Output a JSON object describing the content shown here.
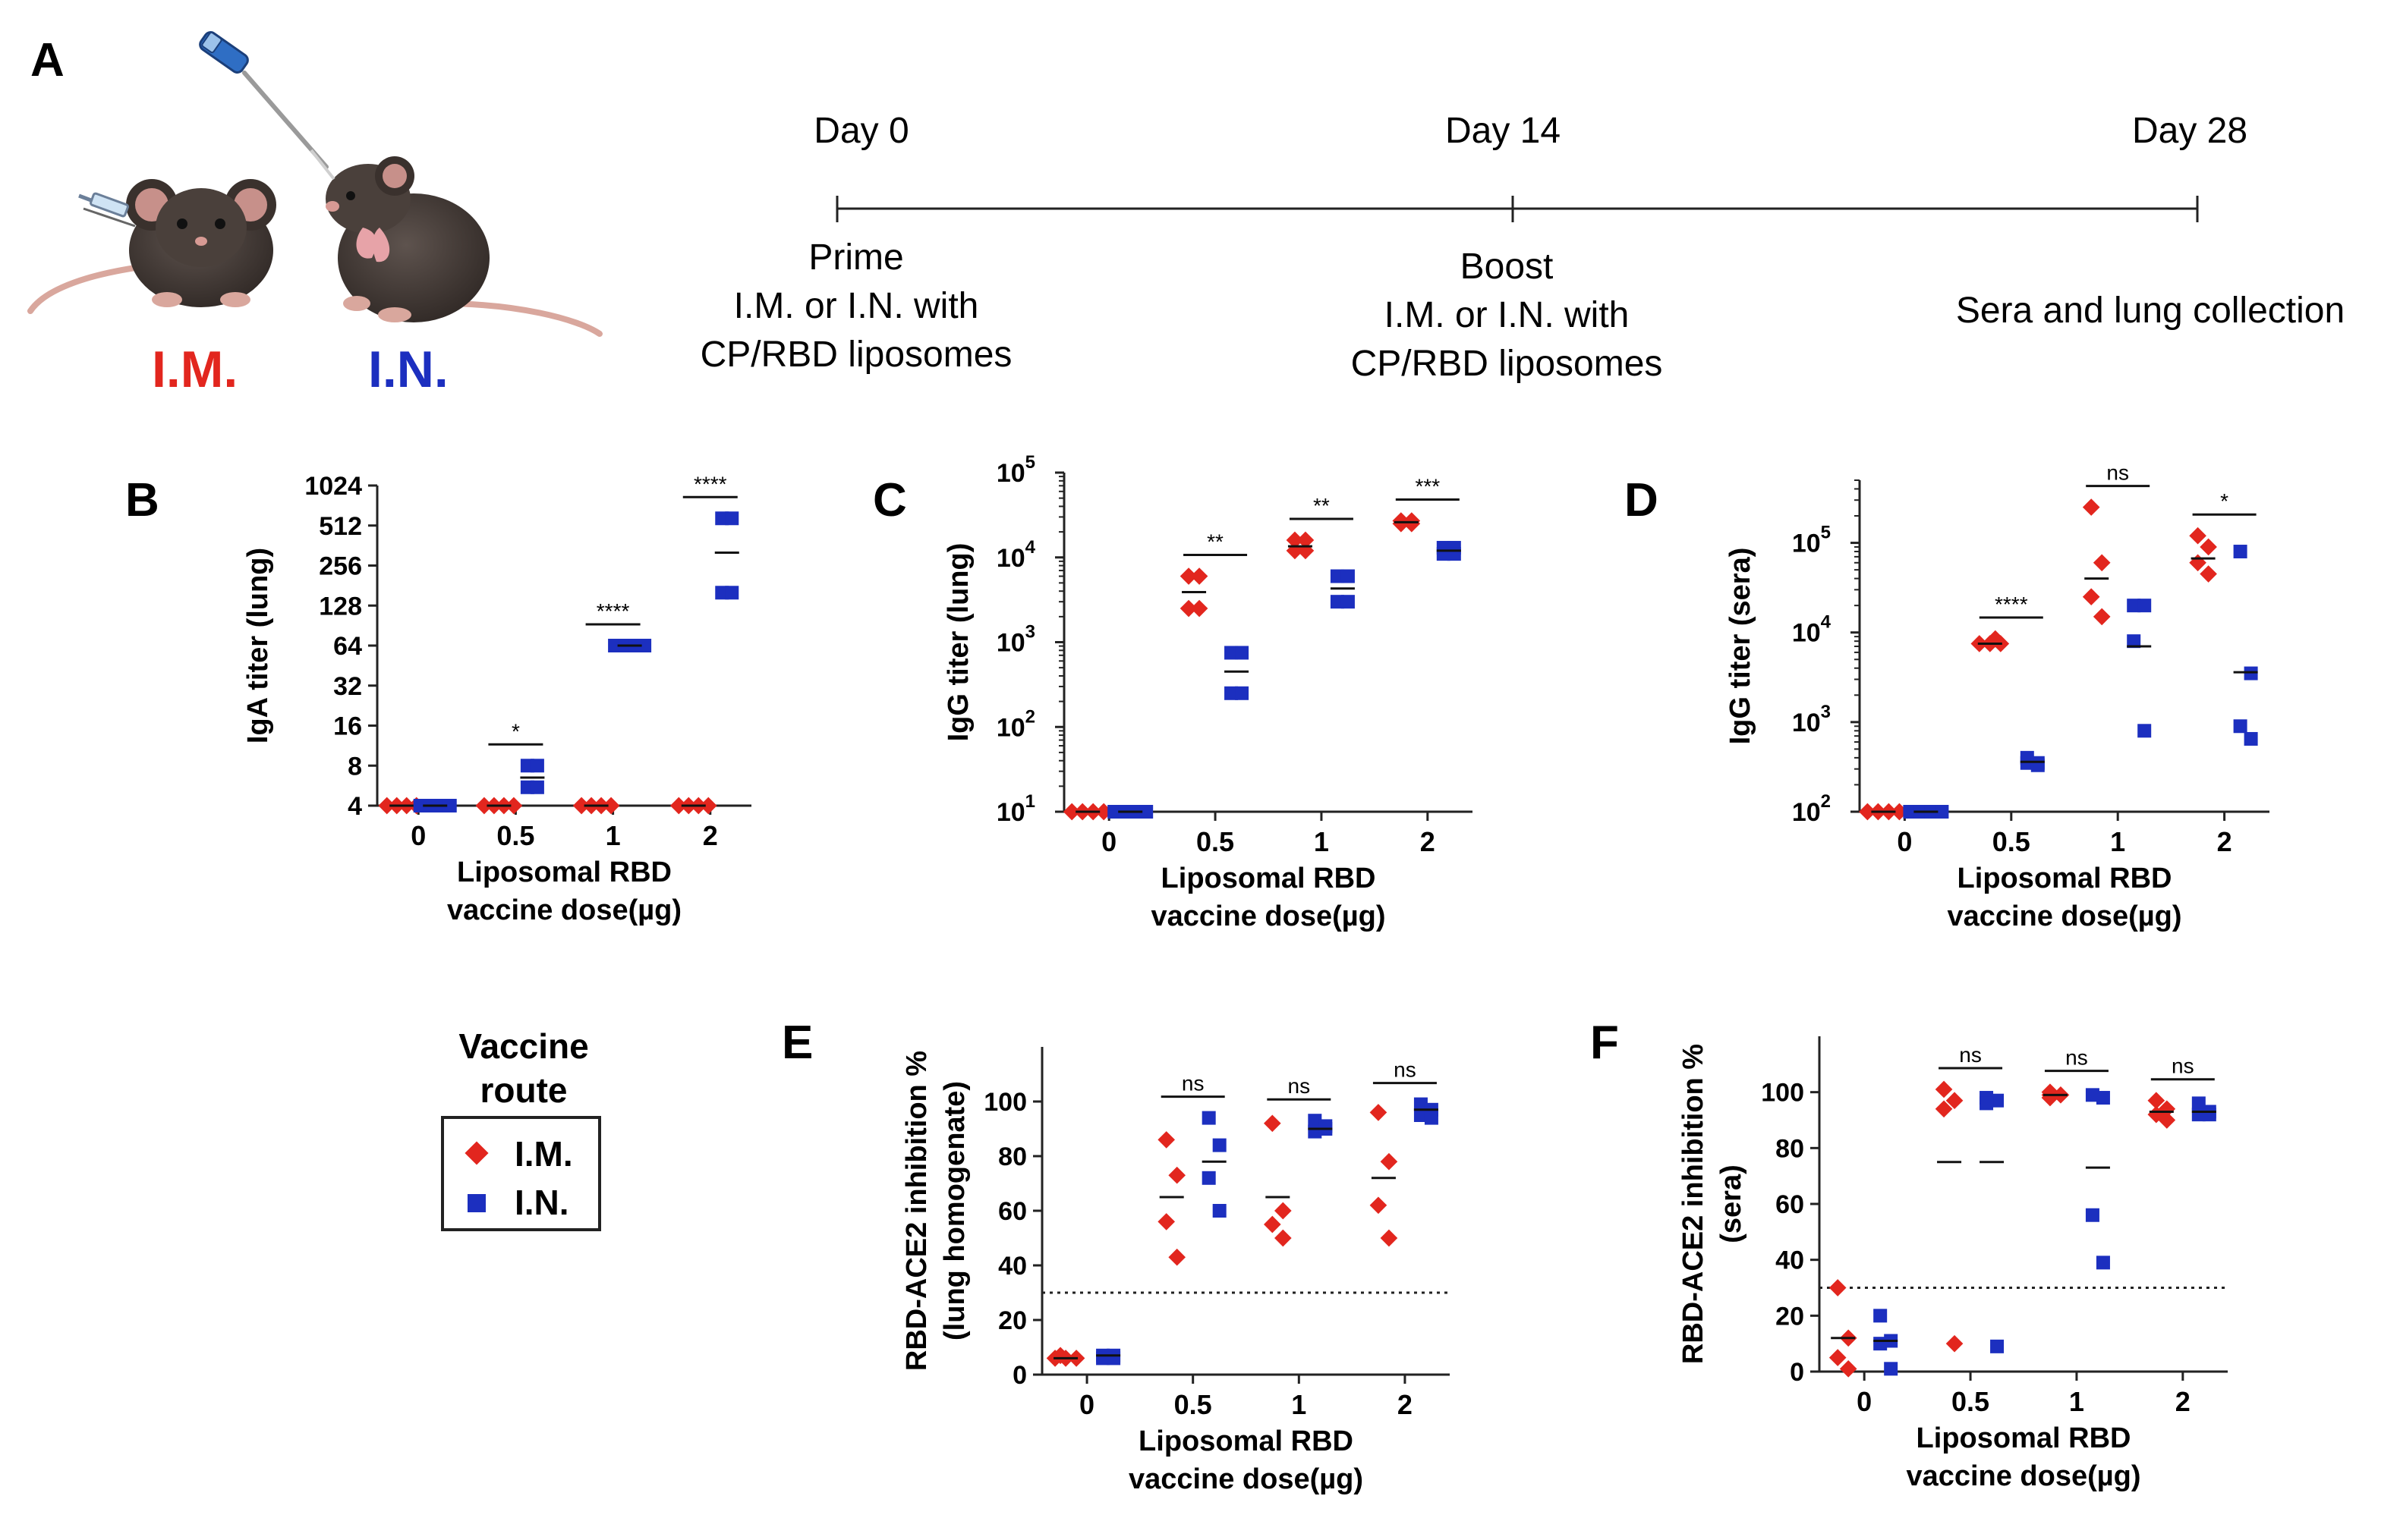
{
  "colors": {
    "im": "#e2261e",
    "in": "#1c2fbf",
    "axis": "#222222"
  },
  "panelA": {
    "letter": "A",
    "route_im": "I.M.",
    "route_in": "I.N.",
    "icons": [
      "mouse-icon",
      "syringe-icon",
      "pipette-icon"
    ],
    "timeline": [
      {
        "day": "Day 0",
        "lines": [
          "Prime",
          "I.M. or I.N. with",
          "CP/RBD liposomes"
        ]
      },
      {
        "day": "Day 14",
        "lines": [
          "Boost",
          "I.M. or I.N. with",
          "CP/RBD liposomes"
        ]
      },
      {
        "day": "Day 28",
        "lines": [
          "Sera and lung collection"
        ]
      }
    ]
  },
  "legend": {
    "title_lines": [
      "Vaccine",
      "route"
    ],
    "items": [
      "I.M.",
      "I.N."
    ]
  },
  "chart_data": [
    {
      "panel": "B",
      "type": "scatter",
      "scale": "log2",
      "ylabel": "IgA titer (lung)",
      "xlabel_lines": [
        "Liposomal RBD",
        "vaccine dose(µg)"
      ],
      "categories": [
        "0",
        "0.5",
        "1",
        "2"
      ],
      "ylim": [
        4,
        1024
      ],
      "yticks": [
        4,
        8,
        16,
        32,
        64,
        128,
        256,
        512,
        1024
      ],
      "ytick_labels": [
        "4",
        "8",
        "16",
        "32",
        "64",
        "128",
        "256",
        "512",
        "1024"
      ],
      "series": [
        {
          "name": "I.M.",
          "marker": "diamond",
          "points": [
            [
              4,
              4,
              4,
              4
            ],
            [
              4,
              4,
              4,
              4
            ],
            [
              4,
              4,
              4,
              4
            ],
            [
              4,
              4,
              4,
              4
            ]
          ],
          "means": [
            4,
            4,
            4,
            4
          ]
        },
        {
          "name": "I.N.",
          "marker": "square",
          "points": [
            [
              4,
              4,
              4,
              4
            ],
            [
              8,
              8,
              5.5,
              5.5
            ],
            [
              64,
              64,
              64,
              64
            ],
            [
              580,
              580,
              160,
              160
            ]
          ],
          "means": [
            4,
            6.5,
            64,
            320
          ]
        }
      ],
      "significance": [
        {
          "category": "0.5",
          "label": "*"
        },
        {
          "category": "1",
          "label": "****"
        },
        {
          "category": "2",
          "label": "****"
        }
      ]
    },
    {
      "panel": "C",
      "type": "scatter",
      "scale": "log10",
      "ylabel": "IgG titer (lung)",
      "xlabel_lines": [
        "Liposomal RBD",
        "vaccine dose(µg)"
      ],
      "categories": [
        "0",
        "0.5",
        "1",
        "2"
      ],
      "ylim": [
        10,
        100000
      ],
      "yticks": [
        10,
        100,
        1000,
        10000,
        100000
      ],
      "ytick_exps": [
        "1",
        "2",
        "3",
        "4",
        "5"
      ],
      "series": [
        {
          "name": "I.M.",
          "marker": "diamond",
          "points": [
            [
              10,
              10,
              10,
              10
            ],
            [
              6000,
              6000,
              2500,
              2500
            ],
            [
              16000,
              16000,
              12000,
              12000
            ],
            [
              27000,
              27000,
              25000,
              25000
            ]
          ],
          "means": [
            10,
            3900,
            13500,
            26000
          ]
        },
        {
          "name": "I.N.",
          "marker": "square",
          "points": [
            [
              10,
              10,
              10,
              10
            ],
            [
              750,
              750,
              250,
              250
            ],
            [
              6000,
              6000,
              3000,
              3000
            ],
            [
              13000,
              13000,
              11000,
              11000
            ]
          ],
          "means": [
            10,
            450,
            4300,
            12000
          ]
        }
      ],
      "significance": [
        {
          "category": "0.5",
          "label": "**"
        },
        {
          "category": "1",
          "label": "**"
        },
        {
          "category": "2",
          "label": "***"
        }
      ]
    },
    {
      "panel": "D",
      "type": "scatter",
      "scale": "log10",
      "ylabel": "IgG titer (sera)",
      "xlabel_lines": [
        "Liposomal RBD",
        "vaccine dose(µg)"
      ],
      "categories": [
        "0",
        "0.5",
        "1",
        "2"
      ],
      "ylim": [
        100,
        500000
      ],
      "yticks": [
        100,
        1000,
        10000,
        100000
      ],
      "ytick_exps": [
        "2",
        "3",
        "4",
        "5"
      ],
      "series": [
        {
          "name": "I.M.",
          "marker": "diamond",
          "points": [
            [
              100,
              100,
              100,
              100
            ],
            [
              7500,
              7500,
              7500,
              8500
            ],
            [
              250000,
              60000,
              25000,
              15000
            ],
            [
              120000,
              90000,
              60000,
              45000
            ]
          ],
          "means": [
            100,
            7500,
            40000,
            67000
          ]
        },
        {
          "name": "I.N.",
          "marker": "square",
          "points": [
            [
              100,
              100,
              100,
              100
            ],
            [
              400,
              350,
              350,
              330
            ],
            [
              20000,
              20000,
              8000,
              800
            ],
            [
              80000,
              3500,
              900,
              650
            ]
          ],
          "means": [
            100,
            360,
            7000,
            3600
          ]
        }
      ],
      "significance": [
        {
          "category": "0.5",
          "label": "****"
        },
        {
          "category": "1",
          "label": "ns"
        },
        {
          "category": "2",
          "label": "*"
        }
      ]
    },
    {
      "panel": "E",
      "type": "scatter",
      "scale": "linear",
      "ylabel_lines": [
        "RBD-ACE2 inhibition %",
        "(lung homogenate)"
      ],
      "xlabel_lines": [
        "Liposomal RBD",
        "vaccine dose(µg)"
      ],
      "categories": [
        "0",
        "0.5",
        "1",
        "2"
      ],
      "ylim": [
        0,
        120
      ],
      "yticks": [
        0,
        20,
        40,
        60,
        80,
        100
      ],
      "threshold": 30,
      "series": [
        {
          "name": "I.M.",
          "marker": "diamond",
          "points": [
            [
              6,
              6,
              7,
              6
            ],
            [
              86,
              73,
              56,
              43
            ],
            [
              92,
              60,
              55,
              50
            ],
            [
              96,
              78,
              62,
              50
            ]
          ],
          "means": [
            6,
            65,
            65,
            72
          ]
        },
        {
          "name": "I.N.",
          "marker": "square",
          "points": [
            [
              7,
              6,
              7,
              6
            ],
            [
              94,
              84,
              72,
              60
            ],
            [
              93,
              90,
              89,
              91
            ],
            [
              99,
              97,
              95,
              94
            ]
          ],
          "means": [
            7,
            78,
            90,
            97
          ]
        }
      ],
      "significance": [
        {
          "category": "0.5",
          "label": "ns"
        },
        {
          "category": "1",
          "label": "ns"
        },
        {
          "category": "2",
          "label": "ns"
        }
      ]
    },
    {
      "panel": "F",
      "type": "scatter",
      "scale": "linear",
      "ylabel_lines": [
        "RBD-ACE2 inhibition %",
        "(sera)"
      ],
      "xlabel_lines": [
        "Liposomal RBD",
        "vaccine dose(µg)"
      ],
      "categories": [
        "0",
        "0.5",
        "1",
        "2"
      ],
      "ylim": [
        0,
        120
      ],
      "yticks": [
        0,
        20,
        40,
        60,
        80,
        100
      ],
      "threshold": 30,
      "series": [
        {
          "name": "I.M.",
          "marker": "diamond",
          "points": [
            [
              30,
              12,
              5,
              1
            ],
            [
              101,
              97,
              94,
              10
            ],
            [
              100,
              99,
              98,
              99
            ],
            [
              97,
              94,
              92,
              90
            ]
          ],
          "means": [
            12,
            75,
            99,
            93
          ]
        },
        {
          "name": "I.N.",
          "marker": "square",
          "points": [
            [
              20,
              11,
              10,
              1
            ],
            [
              98,
              97,
              96,
              9
            ],
            [
              99,
              98,
              56,
              39
            ],
            [
              96,
              93,
              92,
              92
            ]
          ],
          "means": [
            11,
            75,
            73,
            93
          ]
        }
      ],
      "significance": [
        {
          "category": "0.5",
          "label": "ns"
        },
        {
          "category": "1",
          "label": "ns"
        },
        {
          "category": "2",
          "label": "ns"
        }
      ]
    }
  ]
}
